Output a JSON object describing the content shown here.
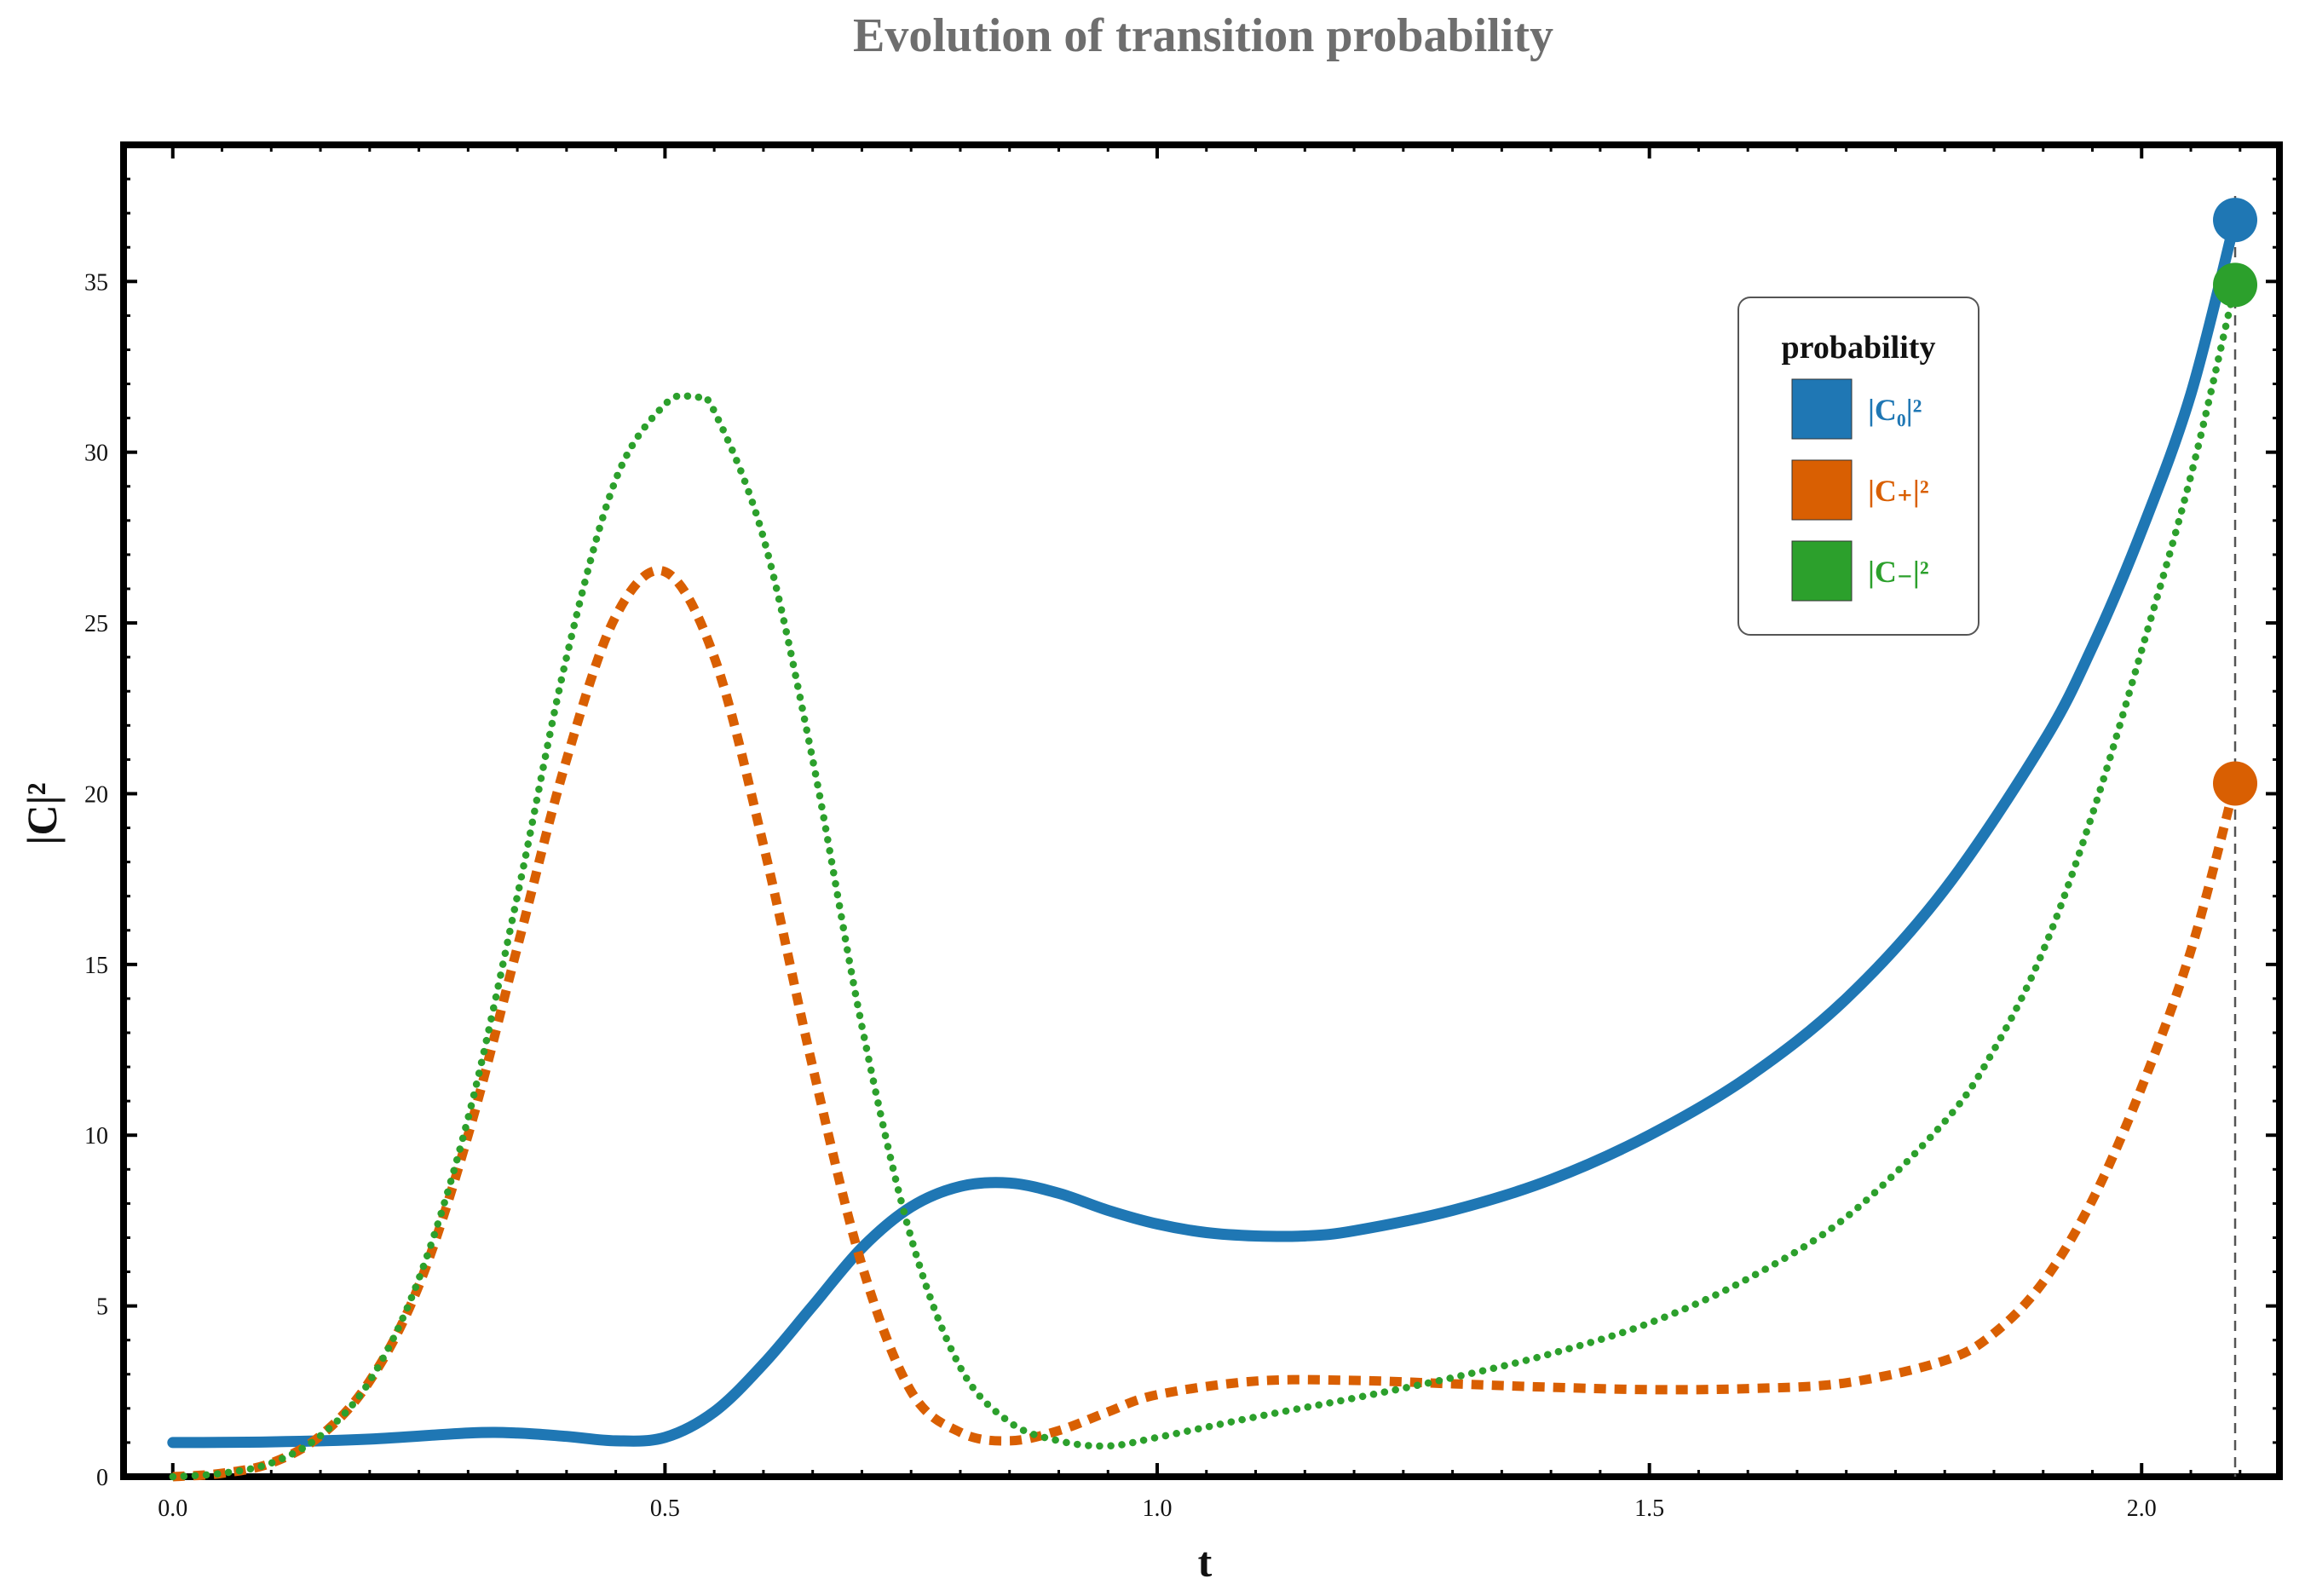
{
  "chart_data": {
    "type": "line",
    "title": "Evolution of transition probability",
    "xlabel": "t",
    "ylabel": "|C|²",
    "xlim": [
      -0.05,
      2.14
    ],
    "ylim": [
      0,
      39
    ],
    "x_ticks": [
      0.0,
      0.5,
      1.0,
      1.5,
      2.0
    ],
    "x_tick_labels": [
      "0.0",
      "0.5",
      "1.0",
      "1.5",
      "2.0"
    ],
    "y_ticks": [
      0,
      5,
      10,
      15,
      20,
      25,
      30,
      35
    ],
    "y_tick_labels": [
      "0",
      "5",
      "10",
      "15",
      "20",
      "25",
      "30",
      "35"
    ],
    "grid": false,
    "legend": {
      "title": "probability",
      "placement": "top-right"
    },
    "marker_line_x": 2.095,
    "series": [
      {
        "name": "|C₀|²",
        "color": "#1f77b4",
        "line_style": "solid",
        "end_marker": true,
        "x": [
          0.0,
          0.1,
          0.2,
          0.3,
          0.35,
          0.4,
          0.45,
          0.5,
          0.55,
          0.6,
          0.65,
          0.7,
          0.75,
          0.8,
          0.85,
          0.9,
          0.95,
          1.0,
          1.05,
          1.1,
          1.15,
          1.2,
          1.3,
          1.4,
          1.5,
          1.6,
          1.7,
          1.8,
          1.9,
          1.95,
          2.0,
          2.05,
          2.095
        ],
        "y": [
          1.0,
          1.02,
          1.1,
          1.28,
          1.28,
          1.18,
          1.05,
          1.15,
          1.9,
          3.3,
          5.0,
          6.7,
          7.9,
          8.5,
          8.6,
          8.3,
          7.8,
          7.4,
          7.15,
          7.05,
          7.05,
          7.2,
          7.8,
          8.7,
          10.0,
          11.7,
          14.0,
          17.2,
          21.5,
          24.3,
          27.7,
          31.7,
          36.8
        ]
      },
      {
        "name": "|C₊|²",
        "color": "#d95f02",
        "line_style": "dashed",
        "end_marker": true,
        "x": [
          0.0,
          0.05,
          0.1,
          0.15,
          0.2,
          0.25,
          0.3,
          0.35,
          0.4,
          0.45,
          0.5,
          0.55,
          0.6,
          0.65,
          0.7,
          0.75,
          0.8,
          0.85,
          0.9,
          0.95,
          1.0,
          1.1,
          1.2,
          1.3,
          1.4,
          1.5,
          1.6,
          1.7,
          1.8,
          1.85,
          1.9,
          1.95,
          2.0,
          2.05,
          2.095
        ],
        "y": [
          0.0,
          0.1,
          0.4,
          1.2,
          2.8,
          5.6,
          10.0,
          15.5,
          21.0,
          25.2,
          26.5,
          24.0,
          18.5,
          12.0,
          6.2,
          2.5,
          1.3,
          1.05,
          1.35,
          1.9,
          2.4,
          2.8,
          2.82,
          2.72,
          2.62,
          2.55,
          2.58,
          2.75,
          3.4,
          4.2,
          5.7,
          8.1,
          11.4,
          15.4,
          20.3
        ]
      },
      {
        "name": "|C₋|²",
        "color": "#2ca02c",
        "line_style": "dotted",
        "end_marker": true,
        "x": [
          0.0,
          0.05,
          0.1,
          0.15,
          0.2,
          0.25,
          0.3,
          0.35,
          0.4,
          0.45,
          0.5,
          0.53,
          0.55,
          0.6,
          0.65,
          0.7,
          0.75,
          0.8,
          0.85,
          0.9,
          0.95,
          1.0,
          1.1,
          1.2,
          1.3,
          1.4,
          1.5,
          1.6,
          1.7,
          1.8,
          1.85,
          1.9,
          1.95,
          2.0,
          2.05,
          2.095
        ],
        "y": [
          0.0,
          0.1,
          0.4,
          1.2,
          2.8,
          5.8,
          10.5,
          17.0,
          24.0,
          29.2,
          31.4,
          31.6,
          31.2,
          27.5,
          21.0,
          13.2,
          7.0,
          3.2,
          1.6,
          1.05,
          0.9,
          1.15,
          1.75,
          2.3,
          2.9,
          3.6,
          4.5,
          5.8,
          7.6,
          10.4,
          12.5,
          15.4,
          19.4,
          24.2,
          29.3,
          34.9
        ]
      }
    ]
  }
}
